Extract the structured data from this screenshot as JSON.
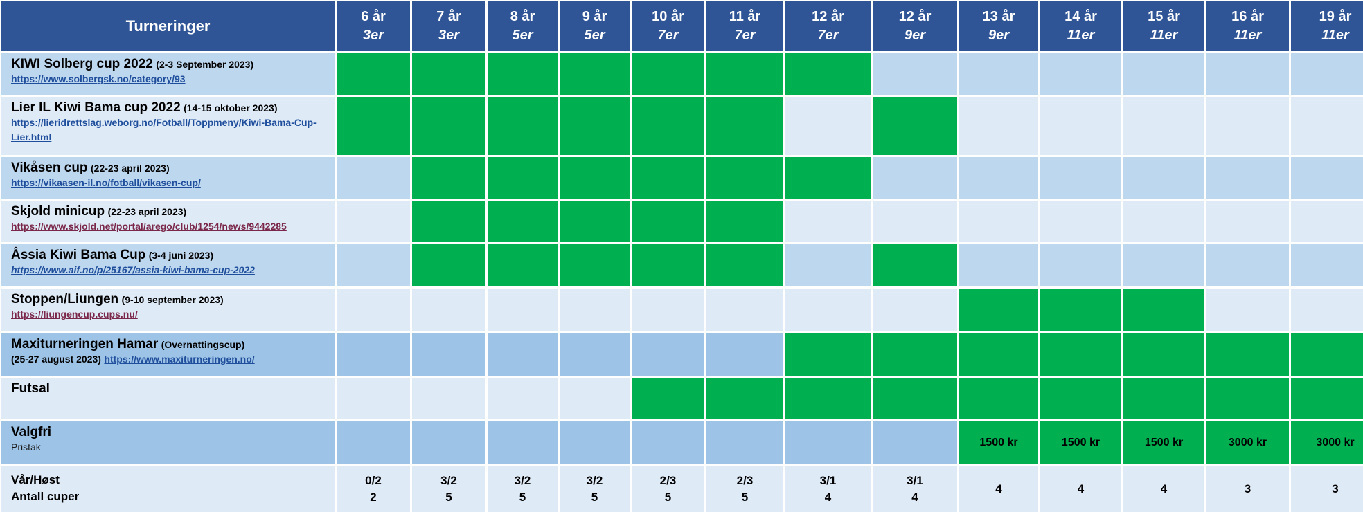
{
  "header": {
    "title": "Turneringer",
    "columns": [
      {
        "age": "6 år",
        "team": "3er"
      },
      {
        "age": "7 år",
        "team": "3er"
      },
      {
        "age": "8 år",
        "team": "5er"
      },
      {
        "age": "9 år",
        "team": "5er"
      },
      {
        "age": "10 år",
        "team": "7er"
      },
      {
        "age": "11 år",
        "team": "7er"
      },
      {
        "age": "12 år",
        "team": "7er"
      },
      {
        "age": "12 år",
        "team": "9er"
      },
      {
        "age": "13 år",
        "team": "9er"
      },
      {
        "age": "14 år",
        "team": "11er"
      },
      {
        "age": "15 år",
        "team": "11er"
      },
      {
        "age": "16 år",
        "team": "11er"
      },
      {
        "age": "19 år",
        "team": "11er"
      }
    ]
  },
  "tournaments": [
    {
      "name": "KIWI Solberg cup 2022",
      "date": "(2-3 September 2023)",
      "link": "https://www.solbergsk.no/category/93",
      "participating": [
        1,
        1,
        1,
        1,
        1,
        1,
        1,
        0,
        0,
        0,
        0,
        0,
        0
      ]
    },
    {
      "name": "Lier IL Kiwi Bama cup 2022",
      "date": "(14-15 oktober 2023)",
      "link": "https://lieridrettslag.weborg.no/Fotball/Toppmeny/Kiwi-Bama-Cup-Lier.html",
      "participating": [
        1,
        1,
        1,
        1,
        1,
        1,
        0,
        1,
        0,
        0,
        0,
        0,
        0
      ]
    },
    {
      "name": "Vikåsen cup",
      "date": "(22-23 april 2023)",
      "link": "https://vikaasen-il.no/fotball/vikasen-cup/",
      "participating": [
        0,
        1,
        1,
        1,
        1,
        1,
        1,
        0,
        0,
        0,
        0,
        0,
        0
      ]
    },
    {
      "name": "Skjold minicup",
      "date": "(22-23 april 2023)",
      "link": "https://www.skjold.net/portal/arego/club/1254/news/9442285",
      "participating": [
        0,
        1,
        1,
        1,
        1,
        1,
        0,
        0,
        0,
        0,
        0,
        0,
        0
      ]
    },
    {
      "name": "Åssia Kiwi Bama Cup",
      "date": "(3-4 juni 2023)",
      "link": "https://www.aif.no/p/25167/assia-kiwi-bama-cup-2022",
      "participating": [
        0,
        1,
        1,
        1,
        1,
        1,
        0,
        1,
        0,
        0,
        0,
        0,
        0
      ]
    },
    {
      "name": "Stoppen/Liungen",
      "date": "(9-10 september 2023)",
      "link": "https://liungencup.cups.nu/",
      "participating": [
        0,
        0,
        0,
        0,
        0,
        0,
        0,
        0,
        1,
        1,
        1,
        0,
        0
      ]
    },
    {
      "name": "Maxiturneringen Hamar",
      "date": "(Overnattingscup)",
      "date2": "(25-27 august 2023)",
      "link": "https://www.maxiturneringen.no/",
      "participating": [
        0,
        0,
        0,
        0,
        0,
        0,
        1,
        1,
        1,
        1,
        1,
        1,
        1
      ]
    },
    {
      "name": "Futsal",
      "participating": [
        0,
        0,
        0,
        0,
        1,
        1,
        1,
        1,
        1,
        1,
        1,
        1,
        1
      ]
    }
  ],
  "valgfri": {
    "name": "Valgfri",
    "sub": "Pristak",
    "prices": [
      "",
      "",
      "",
      "",
      "",
      "",
      "",
      "",
      "1500 kr",
      "1500 kr",
      "1500 kr",
      "3000 kr",
      "3000 kr"
    ]
  },
  "summary": {
    "label1": "Vår/Høst",
    "label2": "Antall cuper",
    "split": [
      "0/2",
      "3/2",
      "3/2",
      "3/2",
      "2/3",
      "2/3",
      "3/1",
      "3/1",
      "",
      "",
      "",
      "",
      ""
    ],
    "count": [
      "2",
      "5",
      "5",
      "5",
      "5",
      "5",
      "4",
      "4",
      "4",
      "4",
      "4",
      "3",
      "3"
    ]
  },
  "colors": {
    "header": "#2f5597",
    "participating": "#00b050",
    "row_dark": "#bdd7ee",
    "row_light": "#deeaf6",
    "row_mid": "#9dc3e6",
    "link": "#1f4e9c",
    "link_visited": "#7b2749"
  }
}
